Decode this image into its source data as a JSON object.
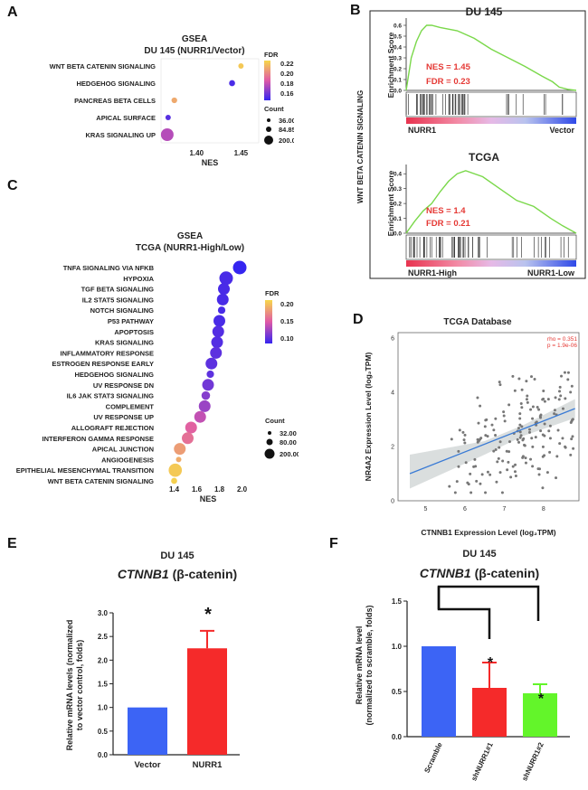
{
  "panels": {
    "A": {
      "label": "A",
      "title1": "GSEA",
      "title2": "DU 145 (NURR1/Vector)",
      "xlabel": "NES",
      "legend_fdr_title": "FDR",
      "legend_fdr_ticks": [
        "0.22",
        "0.20",
        "0.18",
        "0.16"
      ],
      "legend_count_title": "Count",
      "legend_count_values": [
        "36.00",
        "84.85",
        "200.00"
      ]
    },
    "B": {
      "label": "B",
      "side_label": "WNT BETA CATENIN SIGNALING",
      "top": {
        "title": "DU 145",
        "ylabel": "Enrichment Score",
        "nes": "NES = 1.45",
        "fdr": "FDR = 0.23",
        "left_label": "NURR1",
        "right_label": "Vector",
        "yticks": [
          "0.6",
          "0.5",
          "0.4",
          "0.3",
          "0.2",
          "0.1",
          "0.0"
        ]
      },
      "bottom": {
        "title": "TCGA",
        "ylabel": "Enrichment Score",
        "nes": "NES = 1.4",
        "fdr": "FDR = 0.21",
        "left_label": "NURR1-High",
        "right_label": "NURR1-Low",
        "yticks": [
          "0.4",
          "0.3",
          "0.2",
          "0.1",
          "0.0"
        ]
      }
    },
    "C": {
      "label": "C",
      "title1": "GSEA",
      "title2": "TCGA (NURR1-High/Low)",
      "xlabel": "NES",
      "legend_fdr_title": "FDR",
      "legend_fdr_ticks": [
        "0.20",
        "0.15",
        "0.10"
      ],
      "legend_count_title": "Count",
      "legend_count_values": [
        "32.00",
        "80.00",
        "200.00"
      ]
    },
    "D": {
      "label": "D",
      "title": "TCGA Database",
      "xlabel": "CTNNB1 Expression Level (log₂TPM)",
      "ylabel": "NR4A2 Expression Level (log₂TPM)",
      "rho": "rho = 0.351",
      "p": "p = 1.9e-06"
    },
    "E": {
      "label": "E",
      "title1": "DU 145",
      "gene": "CTNNB1",
      "gene_suffix": "(β-catenin)",
      "ylabel1": "Relative mRNA levels (normalized",
      "ylabel2": "to vector control, folds)",
      "star": "*"
    },
    "F": {
      "label": "F",
      "title1": "DU 145",
      "gene": "CTNNB1",
      "gene_suffix": "(β-catenin)",
      "ylabel1": "Relative mRNA level",
      "ylabel2": "(normalized to scramble, folds)",
      "star": "*"
    }
  },
  "chart_data": [
    {
      "type": "scatter",
      "panel": "A",
      "title": "GSEA DU 145 (NURR1/Vector)",
      "xlabel": "NES",
      "xticks": [
        "1.40",
        "1.45"
      ],
      "xlim": [
        1.36,
        1.47
      ],
      "categories": [
        "WNT BETA CATENIN SIGNALING",
        "HEDGEHOG SIGNALING",
        "PANCREAS BETA CELLS",
        "APICAL SURFACE",
        "KRAS SIGNALING UP"
      ],
      "values": [
        1.45,
        1.44,
        1.375,
        1.368,
        1.367
      ],
      "fdr": [
        0.225,
        0.155,
        0.215,
        0.158,
        0.18
      ],
      "count": [
        36,
        45,
        40,
        36,
        200
      ],
      "fdr_range": [
        0.15,
        0.23
      ]
    },
    {
      "type": "scatter",
      "panel": "C",
      "title": "GSEA TCGA (NURR1-High/Low)",
      "xlabel": "NES",
      "xticks": [
        "1.4",
        "1.6",
        "1.8",
        "2.0"
      ],
      "xlim": [
        1.3,
        2.1
      ],
      "categories": [
        "TNFA SIGNALING VIA NFKB",
        "HYPOXIA",
        "TGF BETA SIGNALING",
        "IL2 STAT5 SIGNALING",
        "NOTCH SIGNALING",
        "P53 PATHWAY",
        "APOPTOSIS",
        "KRAS SIGNALING",
        "INFLAMMATORY RESPONSE",
        "ESTROGEN RESPONSE EARLY",
        "HEDGEHOG SIGNALING",
        "UV RESPONSE DN",
        "IL6 JAK STAT3 SIGNALING",
        "COMPLEMENT",
        "UV RESPONSE UP",
        "ALLOGRAFT REJECTION",
        "INTERFERON GAMMA RESPONSE",
        "APICAL JUNCTION",
        "ANGIOGENESIS",
        "EPITHELIAL MESENCHYMAL TRANSITION",
        "WNT BETA CATENIN SIGNALING"
      ],
      "values": [
        1.98,
        1.86,
        1.84,
        1.83,
        1.82,
        1.8,
        1.79,
        1.78,
        1.77,
        1.73,
        1.72,
        1.7,
        1.68,
        1.67,
        1.63,
        1.55,
        1.52,
        1.45,
        1.44,
        1.41,
        1.4
      ],
      "fdr": [
        0.05,
        0.06,
        0.06,
        0.06,
        0.06,
        0.06,
        0.065,
        0.065,
        0.07,
        0.07,
        0.07,
        0.08,
        0.09,
        0.1,
        0.12,
        0.14,
        0.15,
        0.18,
        0.19,
        0.21,
        0.215
      ],
      "count": [
        200,
        200,
        150,
        150,
        60,
        150,
        150,
        150,
        150,
        150,
        60,
        150,
        80,
        150,
        150,
        150,
        150,
        150,
        32,
        190,
        40
      ],
      "fdr_range": [
        0.05,
        0.22
      ]
    },
    {
      "type": "line",
      "panel": "B-top",
      "title": "DU 145",
      "ylabel": "Enrichment Score",
      "ylim": [
        0,
        0.65
      ],
      "x": [
        0,
        0.03,
        0.06,
        0.09,
        0.12,
        0.15,
        0.2,
        0.3,
        0.4,
        0.5,
        0.6,
        0.7,
        0.8,
        0.86,
        0.9,
        0.95,
        1.0
      ],
      "y": [
        0,
        0.3,
        0.45,
        0.55,
        0.6,
        0.6,
        0.58,
        0.55,
        0.48,
        0.38,
        0.3,
        0.22,
        0.13,
        0.08,
        0.03,
        0.01,
        0
      ]
    },
    {
      "type": "line",
      "panel": "B-bottom",
      "title": "TCGA",
      "ylabel": "Enrichment Score",
      "ylim": [
        0,
        0.45
      ],
      "x": [
        0,
        0.05,
        0.1,
        0.15,
        0.2,
        0.25,
        0.3,
        0.35,
        0.45,
        0.55,
        0.65,
        0.75,
        0.85,
        0.92,
        1.0
      ],
      "y": [
        0,
        0.08,
        0.15,
        0.2,
        0.28,
        0.35,
        0.4,
        0.42,
        0.38,
        0.3,
        0.22,
        0.18,
        0.1,
        0.05,
        0
      ]
    },
    {
      "type": "scatter",
      "panel": "D",
      "title": "TCGA Database",
      "xlim": [
        4.3,
        8.9
      ],
      "ylim": [
        0,
        6.2
      ],
      "xticks": [
        5,
        6,
        7,
        8
      ],
      "yticks": [
        0,
        2,
        4,
        6
      ],
      "fit": {
        "x": [
          4.6,
          8.8
        ],
        "y": [
          1.0,
          3.4
        ]
      }
    },
    {
      "type": "bar",
      "panel": "E",
      "categories": [
        "Vector",
        "NURR1"
      ],
      "values": [
        1.0,
        2.25
      ],
      "errors": [
        0,
        0.37
      ],
      "colors": [
        "#3c64f5",
        "#f52a2a"
      ],
      "ylim": [
        0,
        3.0
      ],
      "yticks": [
        "0.0",
        "0.5",
        "1.0",
        "1.5",
        "2.0",
        "2.5",
        "3.0"
      ]
    },
    {
      "type": "bar",
      "panel": "F",
      "categories": [
        "Scramble",
        "shNURR1#1",
        "shNURR1#2"
      ],
      "values": [
        1.0,
        0.54,
        0.48
      ],
      "errors": [
        0,
        0.28,
        0.1
      ],
      "colors": [
        "#3c64f5",
        "#f52a2a",
        "#63f52a"
      ],
      "ylim": [
        0,
        1.5
      ],
      "yticks": [
        "0.0",
        "0.5",
        "1.0",
        "1.5"
      ]
    }
  ]
}
